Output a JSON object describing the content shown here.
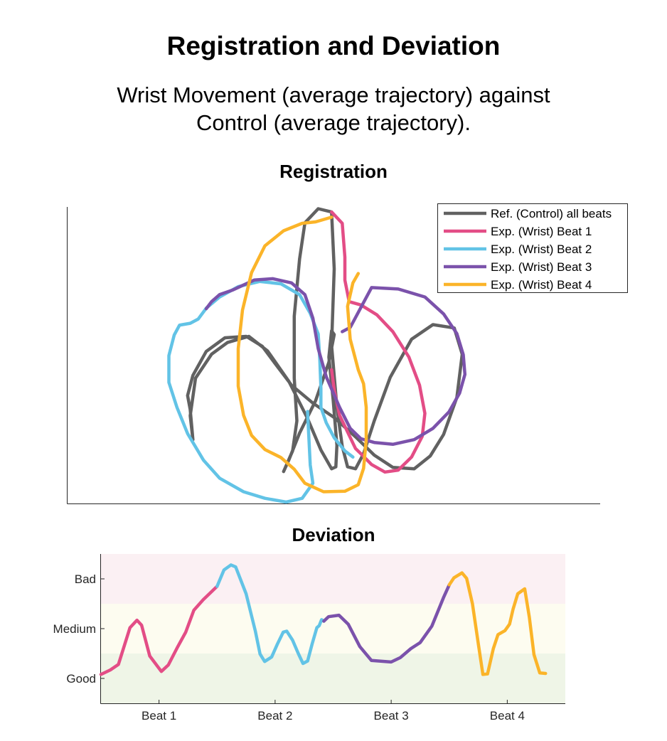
{
  "page": {
    "title": "Registration and Deviation",
    "subtitle_lines": [
      "Wrist Movement (average trajectory) against",
      "Control (average trajectory)."
    ]
  },
  "colors": {
    "reference": "#616161",
    "beat1": "#e34d86",
    "beat2": "#62c3e6",
    "beat3": "#7b52ab",
    "beat4": "#fbb429",
    "band_bad": "#fbf0f3",
    "band_medium": "#fdfcf0",
    "band_good": "#eff5e7"
  },
  "chart_data": [
    {
      "type": "line",
      "title": "Registration",
      "xlabel": "",
      "ylabel": "",
      "grid": false,
      "legend": {
        "placement": "top-right",
        "entries": [
          {
            "label": "Ref. (Control) all beats",
            "color": "#616161"
          },
          {
            "label": "Exp. (Wrist) Beat 1",
            "color": "#e34d86"
          },
          {
            "label": "Exp. (Wrist) Beat 2",
            "color": "#62c3e6"
          },
          {
            "label": "Exp. (Wrist) Beat 3",
            "color": "#7b52ab"
          },
          {
            "label": "Exp. (Wrist) Beat 4",
            "color": "#fbb429"
          }
        ]
      },
      "series": [
        {
          "name": "Ref. (Control) all beats",
          "color": "#616161",
          "points": [
            [
              2.35,
              1.36
            ],
            [
              2.3,
              1.87
            ],
            [
              2.4,
              2.67
            ],
            [
              2.7,
              3.18
            ],
            [
              3.0,
              3.43
            ],
            [
              3.4,
              3.56
            ],
            [
              3.75,
              3.25
            ],
            [
              4.15,
              2.6
            ],
            [
              4.5,
              1.81
            ],
            [
              4.75,
              1.14
            ],
            [
              4.95,
              0.74
            ],
            [
              5.03,
              0.78
            ],
            [
              5.05,
              1.24
            ],
            [
              4.98,
              2.21
            ],
            [
              4.9,
              3.12
            ],
            [
              4.95,
              3.68
            ],
            [
              5.0,
              3.6
            ],
            [
              4.9,
              3.01
            ],
            [
              4.65,
              2.19
            ],
            [
              4.35,
              1.5
            ],
            [
              4.15,
              0.93
            ],
            [
              4.05,
              0.68
            ],
            [
              4.22,
              1.12
            ],
            [
              4.3,
              1.76
            ],
            [
              4.25,
              2.67
            ],
            [
              4.25,
              3.99
            ],
            [
              4.35,
              5.21
            ],
            [
              4.45,
              5.98
            ],
            [
              4.7,
              6.28
            ],
            [
              4.95,
              6.21
            ],
            [
              5.0,
              5.0
            ],
            [
              4.95,
              3.37
            ],
            [
              5.05,
              2.05
            ],
            [
              5.15,
              1.22
            ],
            [
              5.25,
              0.78
            ],
            [
              5.4,
              0.74
            ],
            [
              5.55,
              1.06
            ],
            [
              5.75,
              1.76
            ],
            [
              6.05,
              2.69
            ],
            [
              6.45,
              3.5
            ],
            [
              6.85,
              3.81
            ],
            [
              7.25,
              3.74
            ],
            [
              7.4,
              3.18
            ],
            [
              7.3,
              2.26
            ],
            [
              7.05,
              1.47
            ],
            [
              6.8,
              1.01
            ],
            [
              6.5,
              0.74
            ],
            [
              6.1,
              0.77
            ],
            [
              5.75,
              1.03
            ],
            [
              5.4,
              1.42
            ],
            [
              5.0,
              1.83
            ],
            [
              4.6,
              2.14
            ],
            [
              4.2,
              2.52
            ],
            [
              3.9,
              2.97
            ],
            [
              3.65,
              3.35
            ],
            [
              3.35,
              3.56
            ],
            [
              2.95,
              3.53
            ],
            [
              2.6,
              3.24
            ],
            [
              2.35,
              2.73
            ],
            [
              2.25,
              2.3
            ],
            [
              2.3,
              2.0
            ],
            [
              2.35,
              1.36
            ]
          ]
        },
        {
          "name": "Exp. (Wrist) Beat 1",
          "color": "#e34d86",
          "points": [
            [
              4.95,
              6.21
            ],
            [
              5.15,
              5.97
            ],
            [
              5.2,
              5.25
            ],
            [
              5.2,
              4.76
            ],
            [
              5.28,
              4.3
            ],
            [
              5.5,
              4.23
            ],
            [
              5.8,
              4.02
            ],
            [
              6.1,
              3.66
            ],
            [
              6.4,
              3.12
            ],
            [
              6.6,
              2.52
            ],
            [
              6.7,
              1.92
            ],
            [
              6.65,
              1.43
            ],
            [
              6.45,
              0.99
            ],
            [
              6.2,
              0.71
            ],
            [
              5.95,
              0.67
            ],
            [
              5.7,
              0.83
            ],
            [
              5.5,
              1.06
            ],
            [
              5.4,
              1.17
            ],
            [
              5.1,
              1.88
            ],
            [
              5.0,
              2.42
            ],
            [
              4.95,
              2.85
            ]
          ]
        },
        {
          "name": "Exp. (Wrist) Beat 2",
          "color": "#62c3e6",
          "points": [
            [
              4.5,
              1.96
            ],
            [
              4.55,
              0.82
            ],
            [
              4.6,
              0.43
            ],
            [
              4.4,
              0.11
            ],
            [
              4.1,
              0.03
            ],
            [
              3.7,
              0.11
            ],
            [
              3.3,
              0.25
            ],
            [
              2.85,
              0.54
            ],
            [
              2.55,
              0.92
            ],
            [
              2.25,
              1.49
            ],
            [
              2.05,
              2.05
            ],
            [
              1.9,
              2.58
            ],
            [
              1.9,
              3.15
            ],
            [
              2.0,
              3.59
            ],
            [
              2.1,
              3.8
            ],
            [
              2.3,
              3.84
            ],
            [
              2.45,
              3.93
            ],
            [
              2.6,
              4.16
            ],
            [
              2.85,
              4.4
            ],
            [
              3.2,
              4.62
            ],
            [
              3.6,
              4.73
            ],
            [
              4.0,
              4.68
            ],
            [
              4.35,
              4.45
            ],
            [
              4.55,
              4.05
            ],
            [
              4.7,
              3.61
            ],
            [
              4.73,
              3.05
            ],
            [
              4.75,
              2.45
            ],
            [
              4.75,
              2.05
            ],
            [
              4.85,
              1.72
            ],
            [
              5.0,
              1.4
            ],
            [
              5.2,
              1.12
            ],
            [
              5.35,
              0.99
            ]
          ]
        },
        {
          "name": "Exp. (Wrist) Beat 3",
          "color": "#7b52ab",
          "points": [
            [
              5.15,
              3.66
            ],
            [
              5.3,
              3.75
            ],
            [
              5.7,
              4.6
            ],
            [
              6.2,
              4.57
            ],
            [
              6.7,
              4.4
            ],
            [
              7.05,
              4.04
            ],
            [
              7.3,
              3.62
            ],
            [
              7.42,
              3.17
            ],
            [
              7.45,
              2.75
            ],
            [
              7.35,
              2.35
            ],
            [
              7.15,
              1.95
            ],
            [
              6.85,
              1.6
            ],
            [
              6.5,
              1.36
            ],
            [
              6.1,
              1.26
            ],
            [
              5.75,
              1.3
            ],
            [
              5.5,
              1.38
            ],
            [
              5.3,
              1.6
            ],
            [
              5.1,
              2.05
            ],
            [
              4.85,
              2.7
            ],
            [
              4.7,
              3.3
            ],
            [
              4.6,
              3.95
            ],
            [
              4.45,
              4.45
            ],
            [
              4.2,
              4.7
            ],
            [
              3.85,
              4.79
            ],
            [
              3.5,
              4.76
            ],
            [
              3.1,
              4.55
            ],
            [
              2.85,
              4.45
            ],
            [
              2.7,
              4.3
            ],
            [
              2.6,
              4.15
            ]
          ]
        },
        {
          "name": "Exp. (Wrist) Beat 4",
          "color": "#fbb429",
          "points": [
            [
              5.45,
              4.9
            ],
            [
              5.35,
              4.7
            ],
            [
              5.25,
              4.2
            ],
            [
              5.3,
              3.5
            ],
            [
              5.45,
              2.85
            ],
            [
              5.55,
              2.55
            ],
            [
              5.6,
              2.05
            ],
            [
              5.6,
              1.35
            ],
            [
              5.55,
              0.75
            ],
            [
              5.45,
              0.4
            ],
            [
              5.2,
              0.26
            ],
            [
              4.8,
              0.25
            ],
            [
              4.45,
              0.43
            ],
            [
              4.25,
              0.73
            ],
            [
              4.0,
              0.98
            ],
            [
              3.7,
              1.15
            ],
            [
              3.45,
              1.45
            ],
            [
              3.3,
              1.88
            ],
            [
              3.2,
              2.5
            ],
            [
              3.2,
              3.3
            ],
            [
              3.28,
              4.12
            ],
            [
              3.45,
              4.92
            ],
            [
              3.7,
              5.49
            ],
            [
              4.05,
              5.81
            ],
            [
              4.4,
              5.97
            ],
            [
              4.65,
              6.0
            ],
            [
              4.95,
              6.1
            ]
          ]
        }
      ]
    },
    {
      "type": "line",
      "title": "Deviation",
      "xlabel": "",
      "ylabel": "",
      "grid": false,
      "x_ticks": [
        {
          "label": "Beat 1",
          "value": 0.5
        },
        {
          "label": "Beat 2",
          "value": 1.5
        },
        {
          "label": "Beat 3",
          "value": 2.5
        },
        {
          "label": "Beat 4",
          "value": 3.5
        }
      ],
      "y_ticks": [
        {
          "label": "Good",
          "value": 0.5
        },
        {
          "label": "Medium",
          "value": 1.5
        },
        {
          "label": "Bad",
          "value": 2.5
        }
      ],
      "xlim": [
        0,
        4
      ],
      "ylim": [
        0,
        3
      ],
      "bands": [
        {
          "name": "Good",
          "from": 0,
          "to": 1,
          "color": "#eff5e7"
        },
        {
          "name": "Medium",
          "from": 1,
          "to": 2,
          "color": "#fdfcf0"
        },
        {
          "name": "Bad",
          "from": 2,
          "to": 3,
          "color": "#fbf0f3"
        }
      ],
      "series": [
        {
          "name": "Exp. (Wrist) Beat 1",
          "color": "#e34d86",
          "points": [
            [
              0.0,
              0.58
            ],
            [
              0.08,
              0.67
            ],
            [
              0.15,
              0.78
            ],
            [
              0.25,
              1.52
            ],
            [
              0.31,
              1.67
            ],
            [
              0.35,
              1.57
            ],
            [
              0.42,
              0.95
            ],
            [
              0.52,
              0.64
            ],
            [
              0.58,
              0.77
            ],
            [
              0.66,
              1.13
            ],
            [
              0.73,
              1.43
            ],
            [
              0.8,
              1.87
            ],
            [
              0.88,
              2.08
            ],
            [
              1.0,
              2.35
            ]
          ]
        },
        {
          "name": "Exp. (Wrist) Beat 2",
          "color": "#62c3e6",
          "points": [
            [
              1.0,
              2.35
            ],
            [
              1.06,
              2.68
            ],
            [
              1.12,
              2.78
            ],
            [
              1.16,
              2.74
            ],
            [
              1.25,
              2.2
            ],
            [
              1.33,
              1.45
            ],
            [
              1.37,
              0.99
            ],
            [
              1.41,
              0.84
            ],
            [
              1.47,
              0.93
            ],
            [
              1.52,
              1.19
            ],
            [
              1.57,
              1.43
            ],
            [
              1.6,
              1.45
            ],
            [
              1.65,
              1.27
            ],
            [
              1.7,
              1.0
            ],
            [
              1.74,
              0.8
            ],
            [
              1.78,
              0.85
            ],
            [
              1.82,
              1.2
            ],
            [
              1.86,
              1.52
            ],
            [
              1.88,
              1.56
            ],
            [
              1.9,
              1.68
            ],
            [
              1.92,
              1.65
            ]
          ]
        },
        {
          "name": "Exp. (Wrist) Beat 3",
          "color": "#7b52ab",
          "points": [
            [
              1.92,
              1.65
            ],
            [
              1.96,
              1.74
            ],
            [
              2.05,
              1.77
            ],
            [
              2.13,
              1.59
            ],
            [
              2.23,
              1.14
            ],
            [
              2.33,
              0.86
            ],
            [
              2.5,
              0.83
            ],
            [
              2.58,
              0.92
            ],
            [
              2.67,
              1.1
            ],
            [
              2.75,
              1.22
            ],
            [
              2.85,
              1.55
            ],
            [
              2.95,
              2.12
            ],
            [
              3.0,
              2.38
            ]
          ]
        },
        {
          "name": "Exp. (Wrist) Beat 4",
          "color": "#fbb429",
          "points": [
            [
              3.0,
              2.38
            ],
            [
              3.04,
              2.52
            ],
            [
              3.11,
              2.62
            ],
            [
              3.15,
              2.51
            ],
            [
              3.2,
              2.0
            ],
            [
              3.25,
              1.2
            ],
            [
              3.29,
              0.58
            ],
            [
              3.33,
              0.59
            ],
            [
              3.38,
              1.1
            ],
            [
              3.42,
              1.38
            ],
            [
              3.48,
              1.46
            ],
            [
              3.52,
              1.59
            ],
            [
              3.55,
              1.89
            ],
            [
              3.59,
              2.2
            ],
            [
              3.65,
              2.3
            ],
            [
              3.69,
              1.73
            ],
            [
              3.73,
              0.98
            ],
            [
              3.78,
              0.61
            ],
            [
              3.83,
              0.6
            ]
          ]
        }
      ]
    }
  ]
}
